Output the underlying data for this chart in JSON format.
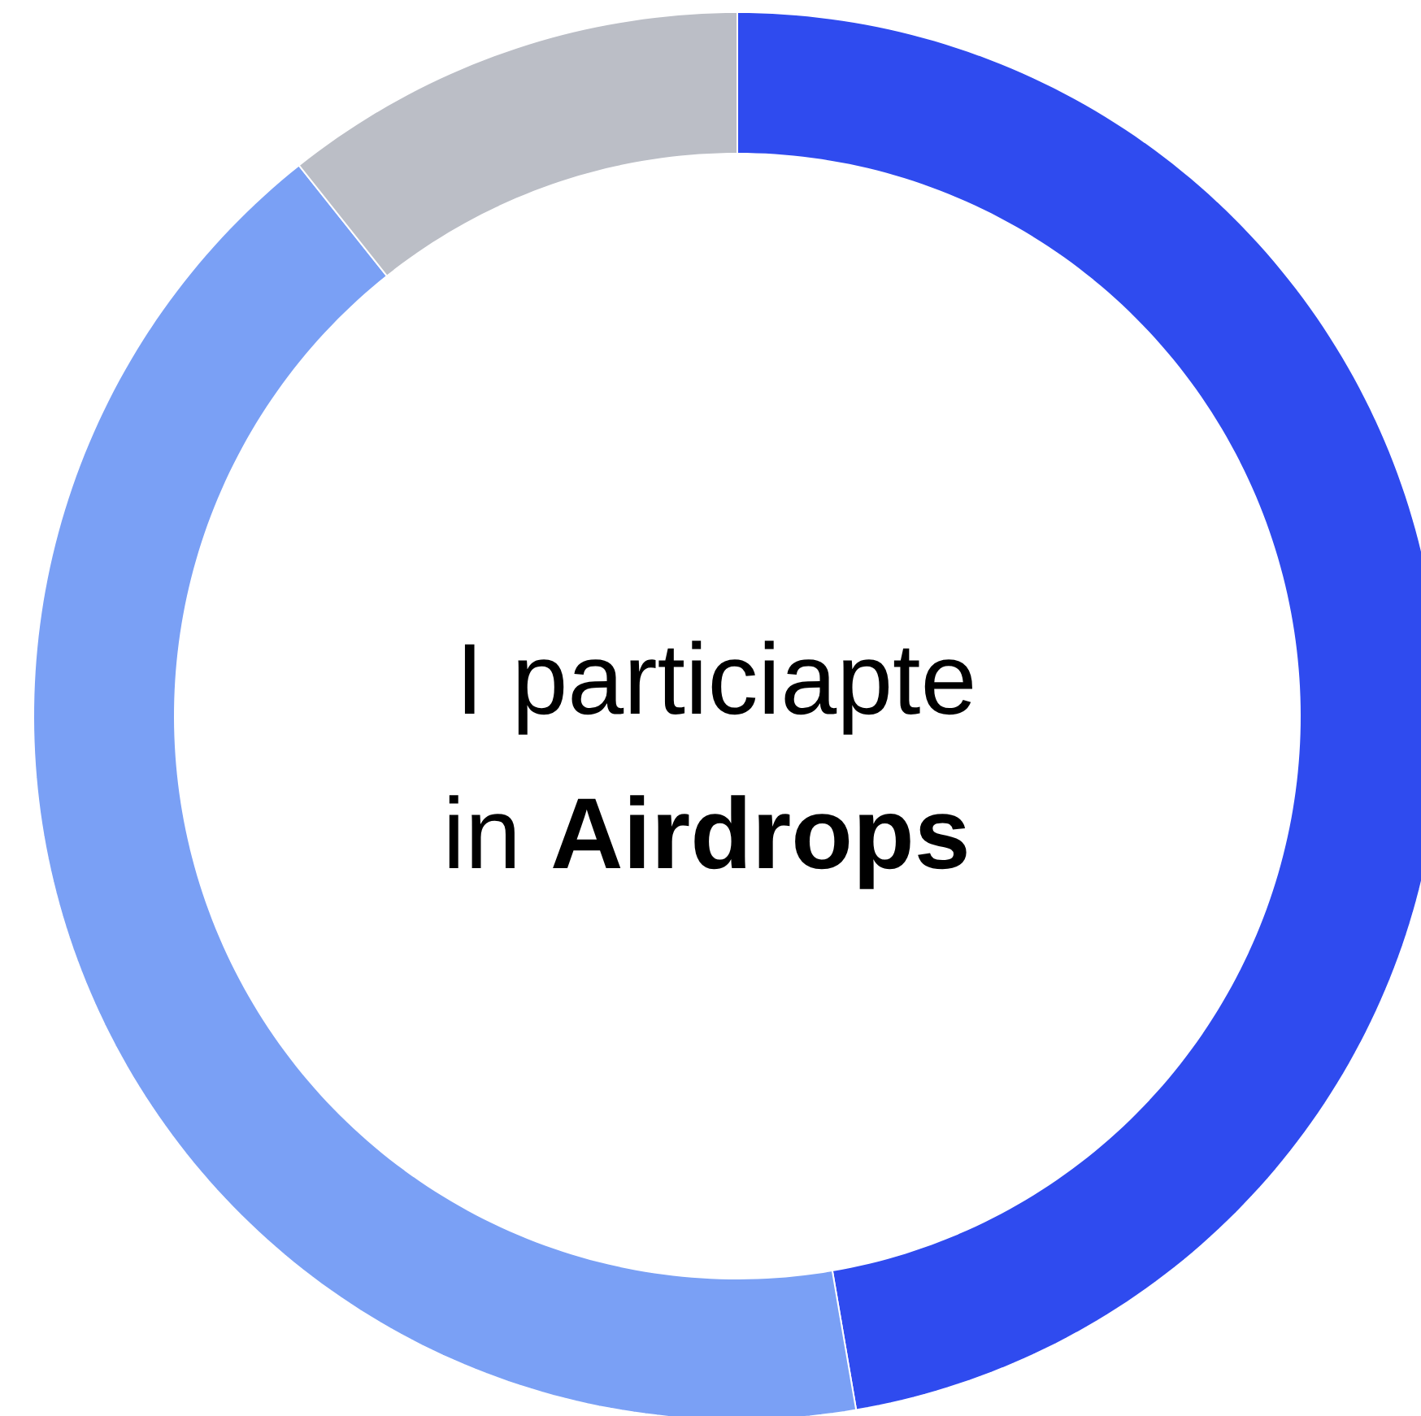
{
  "chart_data": {
    "type": "donut",
    "title": "I particiapte in Airdrops",
    "categories": [
      null,
      null,
      null
    ],
    "values": [
      47.3,
      42.0,
      10.7
    ],
    "colors": [
      "#2f4bef",
      "#7aa0f5",
      "#bbbec6"
    ]
  }
}
